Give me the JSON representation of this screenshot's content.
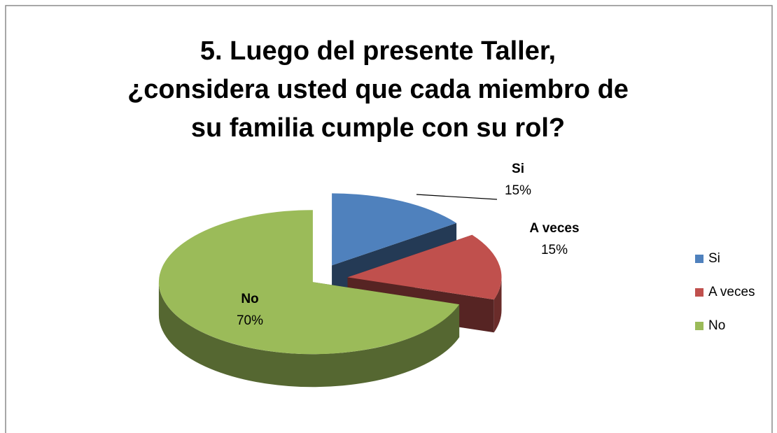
{
  "chart_data": {
    "type": "pie",
    "title": "5. Luego del presente Taller, ¿considera usted que cada miembro de su familia cumple con su rol?",
    "categories": [
      "Si",
      "A veces",
      "No"
    ],
    "values": [
      15,
      15,
      70
    ],
    "value_labels": [
      "15%",
      "15%",
      "70%"
    ],
    "colors": [
      "#4f81bd",
      "#c0504d",
      "#9bbb59"
    ],
    "legend": "right"
  }
}
